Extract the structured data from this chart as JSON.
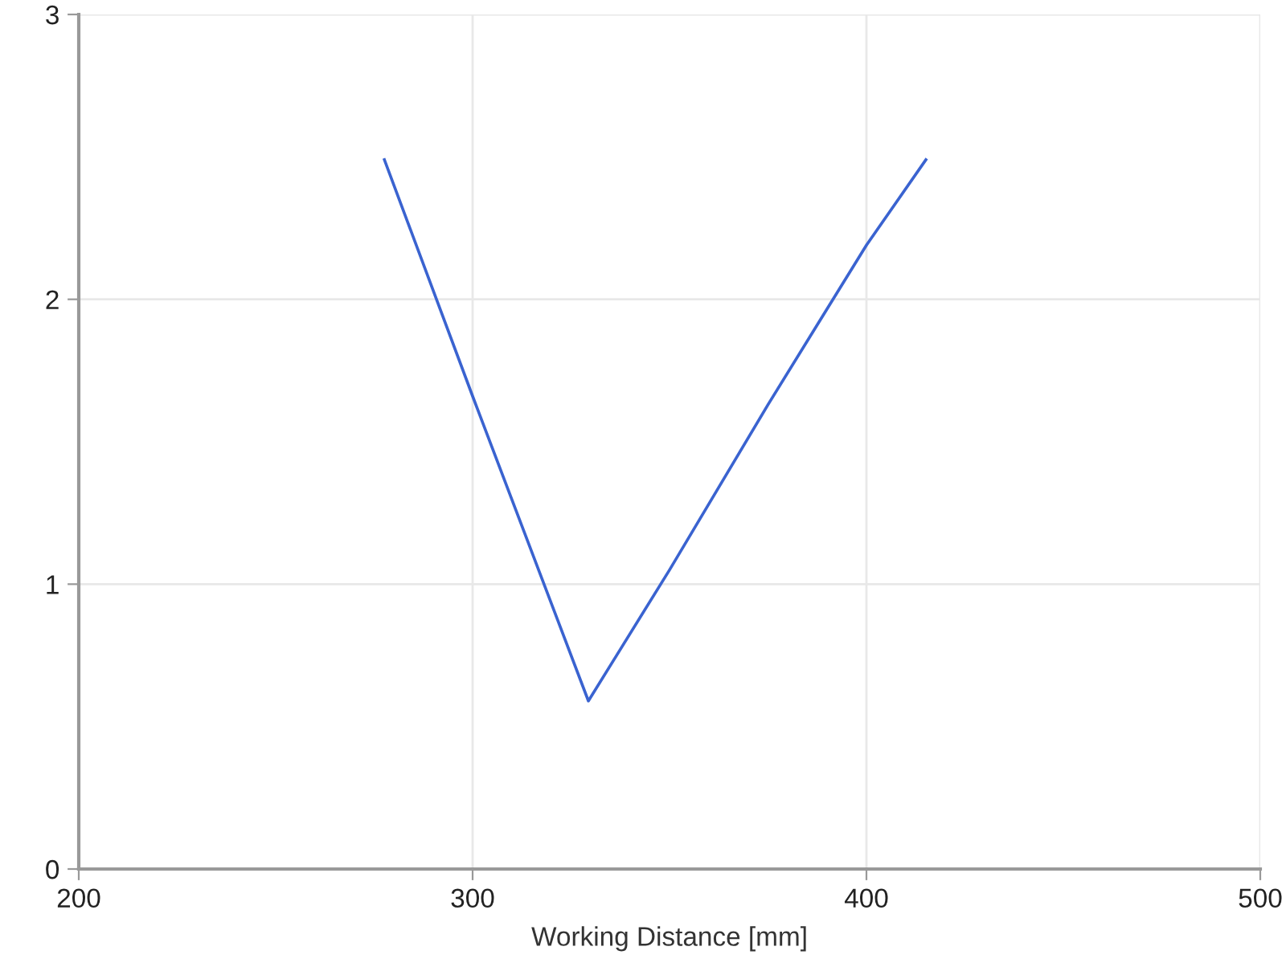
{
  "chart_data": {
    "type": "line",
    "xlabel": "Working Distance [mm]",
    "series": [
      {
        "color": "#3a63d0",
        "x": [
          277.6,
          300,
          329.4,
          350,
          375,
          400,
          415.1
        ],
        "values": [
          2.49,
          1.66,
          0.59,
          1.05,
          1.63,
          2.19,
          2.49
        ]
      }
    ],
    "xlim": [
      200,
      500
    ],
    "xticks": [
      200,
      300,
      400,
      500
    ],
    "ylim": [
      0,
      3
    ],
    "yticks": [
      0,
      1,
      2,
      3
    ],
    "grid": true,
    "legend": false
  }
}
